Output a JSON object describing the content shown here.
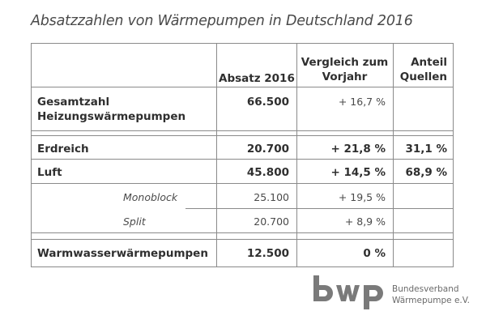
{
  "title": "Absatzzahlen von Wärmepumpen in Deutschland 2016",
  "columns": {
    "absatz": "Absatz 2016",
    "vergleich_line1": "Vergleich zum",
    "vergleich_line2": "Vorjahr",
    "anteil_line1": "Anteil",
    "anteil_line2": "Quellen"
  },
  "rows": [
    {
      "label_line1": "Gesamtzahl",
      "label_line2": "Heizungswärmepumpen",
      "absatz": "66.500",
      "vergleich": "+ 16,7 %",
      "anteil": ""
    },
    {
      "label": "Erdreich",
      "absatz": "20.700",
      "vergleich": "+ 21,8 %",
      "anteil": "31,1 %"
    },
    {
      "label": "Luft",
      "absatz": "45.800",
      "vergleich": "+ 14,5 %",
      "anteil": "68,9 %"
    },
    {
      "label": "Monoblock",
      "absatz": "25.100",
      "vergleich": "+ 19,5 %",
      "anteil": ""
    },
    {
      "label": "Split",
      "absatz": "20.700",
      "vergleich": "+ 8,9 %",
      "anteil": ""
    },
    {
      "label": "Warmwasserwärmepumpen",
      "absatz": "12.500",
      "vergleich": "0 %",
      "anteil": ""
    }
  ],
  "logo": {
    "mark": "bwp",
    "line1": "Bundesverband",
    "line2": "Wärmepumpe e.V.",
    "color": "#7a7a7a"
  }
}
